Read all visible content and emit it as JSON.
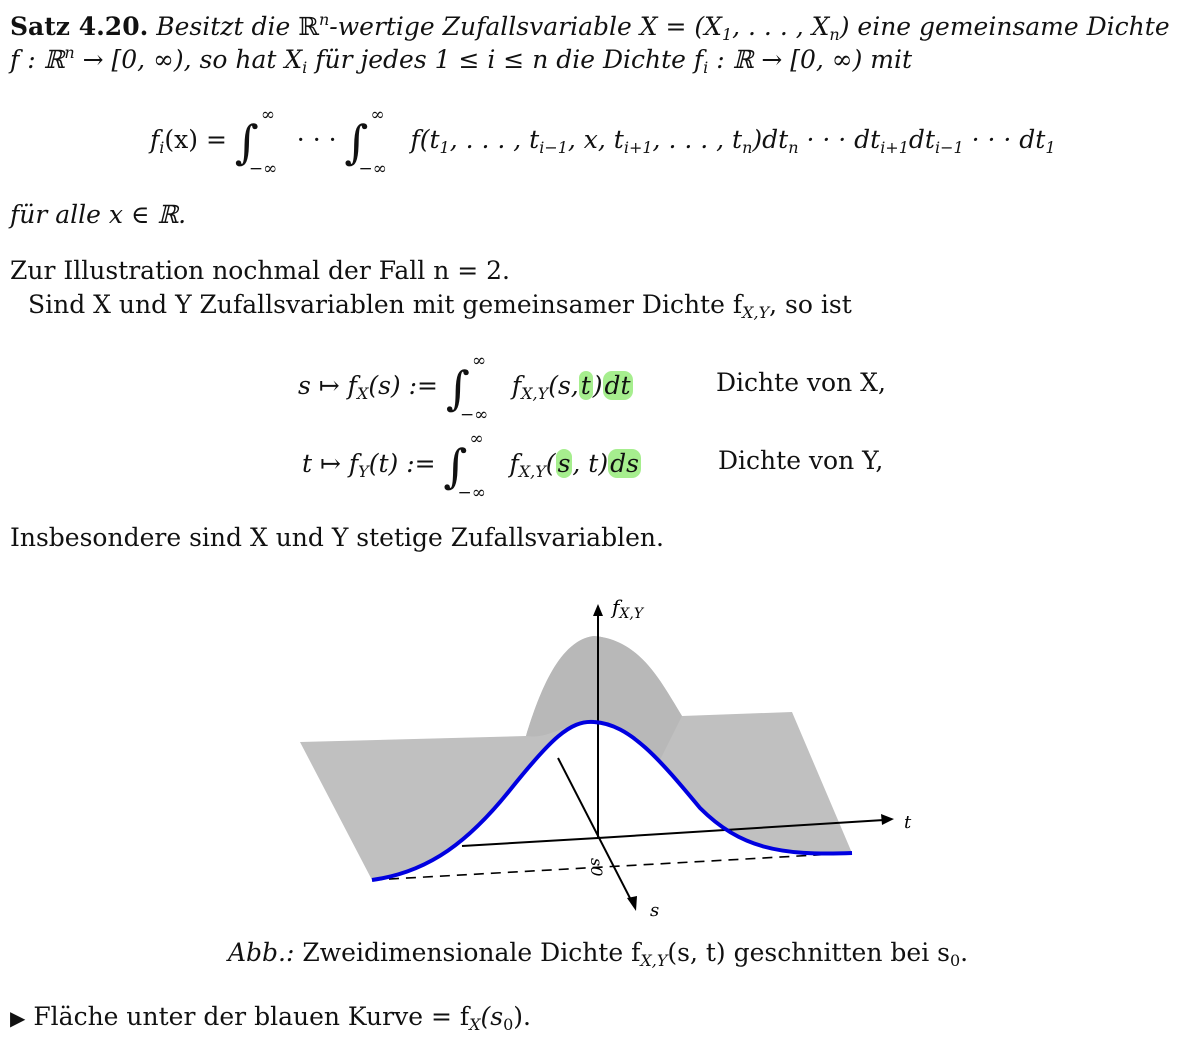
{
  "theorem": {
    "label": "Satz 4.20.",
    "line1_a": "Besitzt die ",
    "R": "ℝ",
    "n": "n",
    "line1_b": "-wertige Zufallsvariable ",
    "X_eq": "X = (X",
    "sub1": "1",
    "dots": ", . . . , X",
    "subn": "n",
    "line1_c": ") eine gemeinsame Dichte",
    "line2_a": "f : ℝ",
    "line2_b": " → [0, ∞), so hat X",
    "i": "i",
    "line2_c": " für jedes 1 ≤ i ≤ n die Dichte f",
    "line2_d": " : ℝ → [0, ∞) mit"
  },
  "formula_main": {
    "lhs": "f",
    "lhs_sub": "i",
    "lhs_arg": "(x) =",
    "int_upper": "∞",
    "int_lower": "−∞",
    "middots": "· · ·",
    "integrand": "f(t",
    "integrand_rest": ", . . . , t",
    "integrand_rest2": ", x, t",
    "integrand_rest3": ", . . . , t",
    "integrand_end": ")dt",
    "tail": " · · · dt",
    "tail2": "dt",
    "tail3": " · · · dt",
    "s1": "1",
    "sim1": "i−1",
    "sip1": "i+1",
    "sn": "n"
  },
  "for_all": "für alle x ∈ ℝ.",
  "illus": "Zur Illustration nochmal der Fall n = 2.",
  "intro": "Sind X und Y Zufallsvariablen mit gemeinsamer Dichte f",
  "intro_sub": "X,Y",
  "intro_end": ", so ist",
  "eq1": {
    "lhs": "s ↦ f",
    "lhs_sub": "X",
    "lhs_arg": "(s) :=",
    "fxy": "f",
    "fxy_sub": "X,Y",
    "open": "(s,",
    "hl_var": "t",
    "close": ")",
    "hl_d": "dt",
    "desc": "Dichte von X,"
  },
  "eq2": {
    "lhs": "t ↦ f",
    "lhs_sub": "Y",
    "lhs_arg": "(t) :=",
    "fxy": "f",
    "fxy_sub": "X,Y",
    "open": "(",
    "hl_var": "s",
    "close": ", t)",
    "hl_d": "ds",
    "desc": "Dichte von Y,"
  },
  "insbesondere": "Insbesondere sind X und Y stetige Zufallsvariablen.",
  "figure": {
    "axis_z": "f",
    "axis_z_sub": "X,Y",
    "axis_t": "t",
    "axis_s": "s",
    "s0": "s0",
    "caption_abb": "Abb.:",
    "caption": " Zweidimensionale Dichte f",
    "caption_sub": "X,Y",
    "caption_end": "(s, t) geschnitten bei s",
    "caption_s0": "0",
    "caption_dot": ".",
    "colors": {
      "surface": "#c0c0c0",
      "curve": "#0000e0",
      "axis": "#000000"
    }
  },
  "bullet": {
    "symbol": "▶",
    "text": " Fläche unter der blauen Kurve = f",
    "sub": "X",
    "end": "(s",
    "s0": "0",
    "close": ")."
  }
}
